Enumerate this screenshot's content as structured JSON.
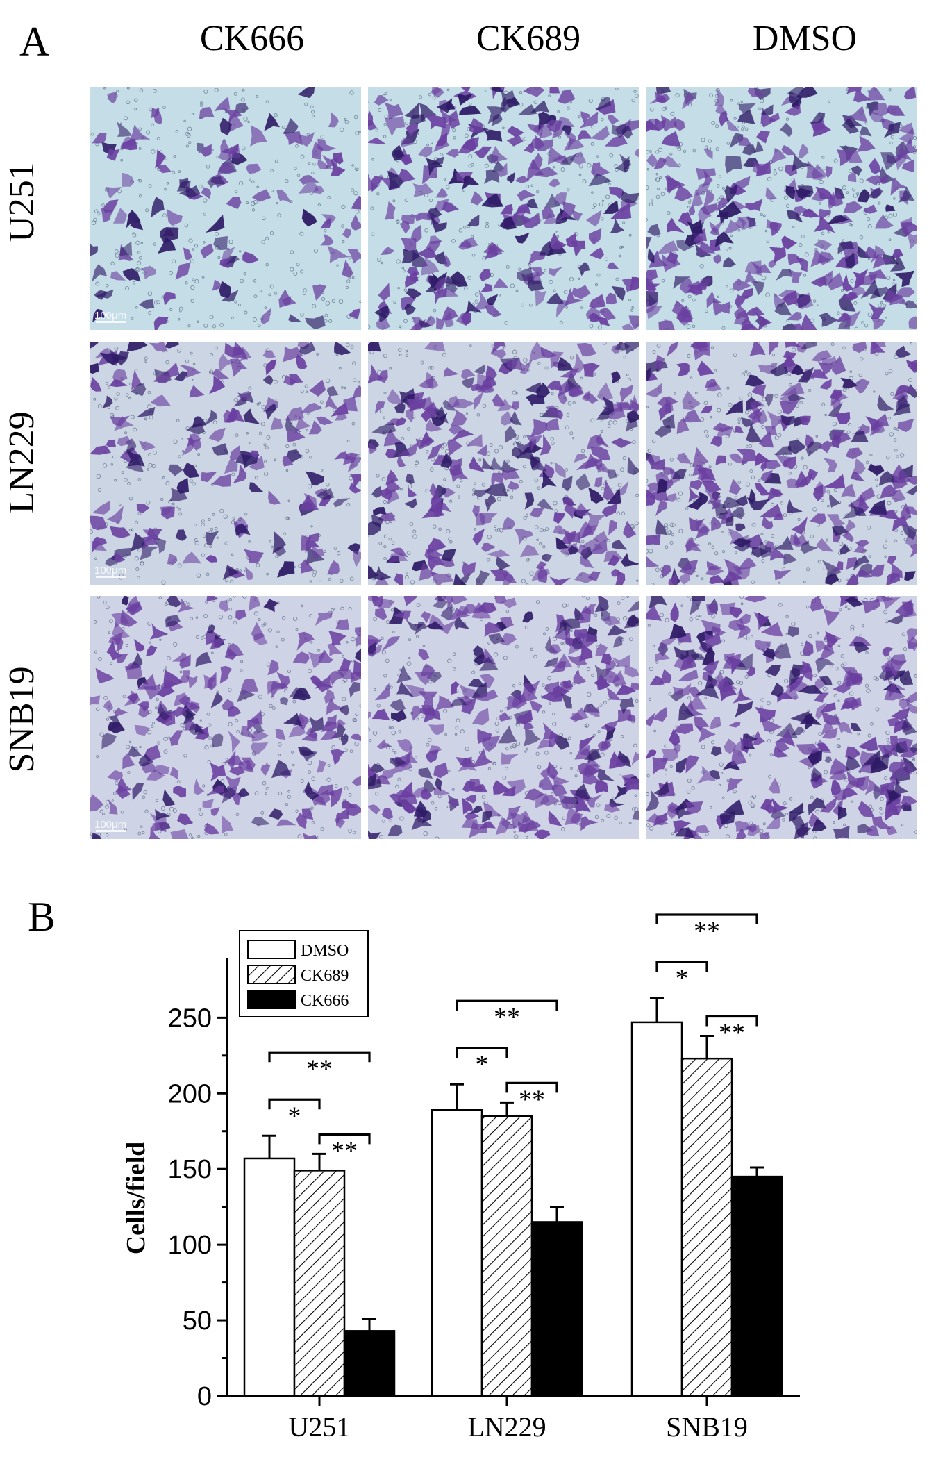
{
  "panel_a": {
    "letter": "A",
    "columns": [
      "CK666",
      "CK689",
      "DMSO"
    ],
    "rows": [
      "U251",
      "LN229",
      "SNB19"
    ],
    "scale_label": "100μm",
    "cell_density": [
      [
        0.3,
        0.85,
        0.95
      ],
      [
        0.5,
        0.9,
        0.95
      ],
      [
        0.7,
        0.95,
        1.0
      ]
    ],
    "colors": {
      "background_light": "#c5dde6",
      "stain": "#6a3fa0",
      "stain_dark": "#2e1a66"
    }
  },
  "panel_b": {
    "letter": "B"
  },
  "chart_data": {
    "type": "bar",
    "ylabel": "Cells/field",
    "xlabel": "",
    "ylim": [
      0,
      280
    ],
    "yticks": [
      0,
      50,
      100,
      150,
      200,
      250
    ],
    "categories": [
      "U251",
      "LN229",
      "SNB19"
    ],
    "series": [
      {
        "name": "DMSO",
        "fill": "white",
        "values": [
          157,
          189,
          247
        ],
        "errors": [
          15,
          17,
          16
        ]
      },
      {
        "name": "CK689",
        "fill": "hatch",
        "values": [
          149,
          185,
          223
        ],
        "errors": [
          11,
          9,
          15
        ]
      },
      {
        "name": "CK666",
        "fill": "black",
        "values": [
          43,
          115,
          145
        ],
        "errors": [
          8,
          10,
          6
        ]
      }
    ],
    "legend_position": "top-left",
    "significance": [
      {
        "group": "U251",
        "comparisons": [
          {
            "between": [
              "DMSO",
              "CK666"
            ],
            "label": "**"
          },
          {
            "between": [
              "DMSO",
              "CK689"
            ],
            "label": "*"
          },
          {
            "between": [
              "CK689",
              "CK666"
            ],
            "label": "**"
          }
        ]
      },
      {
        "group": "LN229",
        "comparisons": [
          {
            "between": [
              "DMSO",
              "CK666"
            ],
            "label": "**"
          },
          {
            "between": [
              "DMSO",
              "CK689"
            ],
            "label": "*"
          },
          {
            "between": [
              "CK689",
              "CK666"
            ],
            "label": "**"
          }
        ]
      },
      {
        "group": "SNB19",
        "comparisons": [
          {
            "between": [
              "DMSO",
              "CK666"
            ],
            "label": "**"
          },
          {
            "between": [
              "DMSO",
              "CK689"
            ],
            "label": "*"
          },
          {
            "between": [
              "CK689",
              "CK666"
            ],
            "label": "**"
          }
        ]
      }
    ]
  }
}
